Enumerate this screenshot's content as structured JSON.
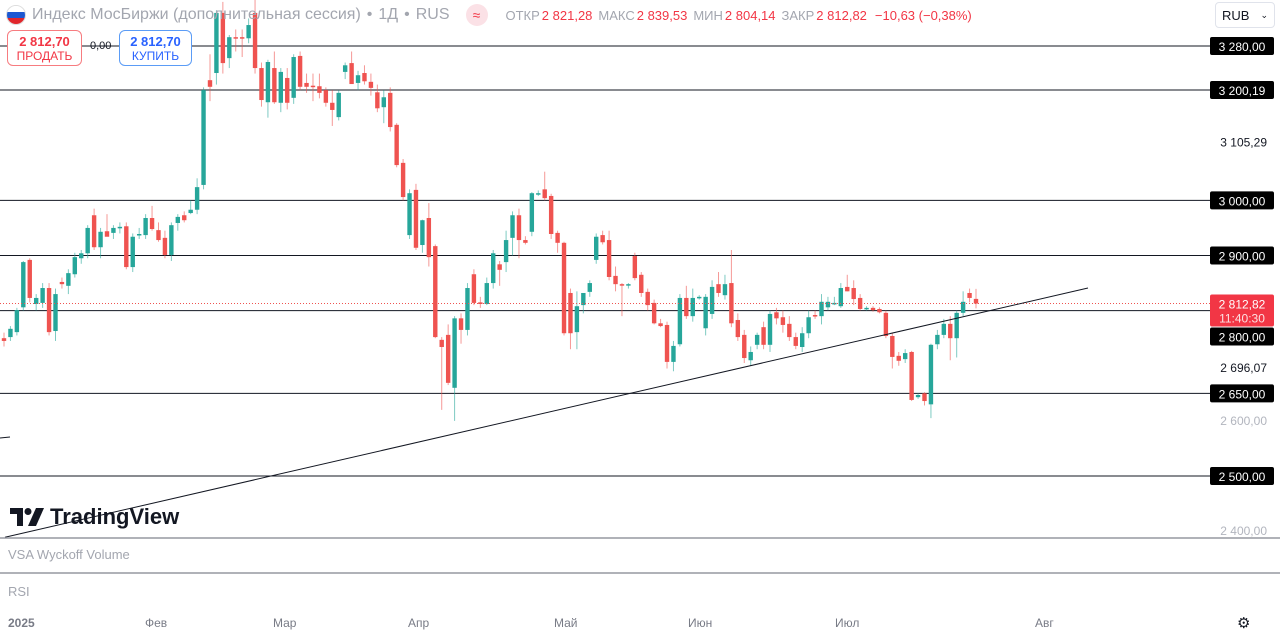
{
  "header": {
    "title": "Индекс МосБиржи (дополнительная сессия)",
    "interval": "1Д",
    "exchange": "RUS",
    "separator": "•",
    "open_label": "ОТКР",
    "open": "2 821,28",
    "high_label": "МАКС",
    "high": "2 839,53",
    "low_label": "МИН",
    "low": "2 804,14",
    "close_label": "ЗАКР",
    "close": "2 812,82",
    "change": "−10,63 (−0,38%)"
  },
  "trade": {
    "sell_price": "2 812,70",
    "sell_label": "ПРОДАТЬ",
    "spread": "0,00",
    "buy_price": "2 812,70",
    "buy_label": "КУПИТЬ"
  },
  "currency": "RUB",
  "logo_text": "TradingView",
  "panes": {
    "volume": "VSA Wyckoff Volume",
    "rsi": "RSI"
  },
  "time_axis": [
    "2025",
    "Фев",
    "Мар",
    "Апр",
    "Май",
    "Июн",
    "Июл",
    "Авг"
  ],
  "colors": {
    "up": "#26a69a",
    "down": "#ef5350",
    "level": "#131722"
  },
  "chart_data": {
    "type": "candlestick",
    "price_range": [
      2380,
      3330
    ],
    "levels": [
      {
        "price": 3280,
        "label": "3 280,00"
      },
      {
        "price": 3200.19,
        "label": "3 200,19"
      },
      {
        "price": 3000,
        "label": "3 000,00"
      },
      {
        "price": 2900,
        "label": "2 900,00"
      },
      {
        "price": 2800,
        "label": "2 800,00"
      },
      {
        "price": 2650,
        "label": "2 650,00"
      },
      {
        "price": 2500,
        "label": "2 500,00"
      }
    ],
    "axis_labels": [
      {
        "price": 3105.29,
        "label": "3 105,29",
        "style": "dark"
      },
      {
        "price": 2696.07,
        "label": "2 696,07",
        "style": "dark"
      },
      {
        "price": 2600,
        "label": "2 600,00",
        "style": "muted"
      },
      {
        "price": 2400,
        "label": "2 400,00",
        "style": "muted"
      }
    ],
    "last_price": {
      "price": 2812.82,
      "label": "2 812,82",
      "countdown": "11:40:30"
    },
    "trendline": {
      "start_price": 2389,
      "end_price": 2841
    },
    "ohlc": [
      [
        2750,
        2760,
        2735,
        2745
      ],
      [
        2752,
        2772,
        2745,
        2767
      ],
      [
        2761,
        2805,
        2755,
        2801
      ],
      [
        2806,
        2890,
        2800,
        2888
      ],
      [
        2892,
        2895,
        2815,
        2823
      ],
      [
        2812,
        2830,
        2800,
        2823
      ],
      [
        2814,
        2850,
        2805,
        2841
      ],
      [
        2841,
        2850,
        2755,
        2761
      ],
      [
        2763,
        2840,
        2745,
        2830
      ],
      [
        2852,
        2860,
        2840,
        2848
      ],
      [
        2845,
        2875,
        2830,
        2868
      ],
      [
        2866,
        2905,
        2860,
        2897
      ],
      [
        2895,
        2910,
        2885,
        2904
      ],
      [
        2904,
        2955,
        2895,
        2950
      ],
      [
        2973,
        2985,
        2910,
        2915
      ],
      [
        2915,
        2950,
        2895,
        2943
      ],
      [
        2944,
        2975,
        2935,
        2934
      ],
      [
        2941,
        2955,
        2930,
        2950
      ],
      [
        2952,
        2960,
        2940,
        2952
      ],
      [
        2953,
        2960,
        2875,
        2879
      ],
      [
        2879,
        2940,
        2870,
        2934
      ],
      [
        2937,
        2950,
        2930,
        2939
      ],
      [
        2937,
        2975,
        2930,
        2968
      ],
      [
        2968,
        2990,
        2945,
        2948
      ],
      [
        2946,
        2960,
        2925,
        2928
      ],
      [
        2932,
        2945,
        2895,
        2901
      ],
      [
        2901,
        2960,
        2890,
        2955
      ],
      [
        2959,
        2975,
        2945,
        2970
      ],
      [
        2973,
        2980,
        2960,
        2964
      ],
      [
        2977,
        3000,
        2975,
        2983
      ],
      [
        2983,
        3040,
        2975,
        3024
      ],
      [
        3028,
        3205,
        3020,
        3200
      ],
      [
        3218,
        3265,
        3180,
        3206
      ],
      [
        3231,
        3345,
        3210,
        3340
      ],
      [
        3340,
        3360,
        3230,
        3249
      ],
      [
        3258,
        3300,
        3240,
        3296
      ],
      [
        3296,
        3310,
        3270,
        3294
      ],
      [
        3296,
        3310,
        3260,
        3294
      ],
      [
        3294,
        3330,
        3285,
        3318
      ],
      [
        3340,
        3365,
        3230,
        3240
      ],
      [
        3240,
        3250,
        3170,
        3182
      ],
      [
        3178,
        3255,
        3150,
        3251
      ],
      [
        3240,
        3270,
        3175,
        3178
      ],
      [
        3177,
        3240,
        3160,
        3233
      ],
      [
        3222,
        3240,
        3165,
        3177
      ],
      [
        3186,
        3265,
        3175,
        3260
      ],
      [
        3262,
        3270,
        3200,
        3206
      ],
      [
        3213,
        3230,
        3195,
        3206
      ],
      [
        3208,
        3230,
        3180,
        3206
      ],
      [
        3207,
        3230,
        3185,
        3195
      ],
      [
        3200,
        3205,
        3170,
        3177
      ],
      [
        3177,
        3200,
        3135,
        3164
      ],
      [
        3151,
        3200,
        3145,
        3195
      ],
      [
        3233,
        3250,
        3220,
        3245
      ],
      [
        3249,
        3270,
        3215,
        3211
      ],
      [
        3213,
        3235,
        3200,
        3227
      ],
      [
        3231,
        3245,
        3210,
        3216
      ],
      [
        3215,
        3230,
        3190,
        3204
      ],
      [
        3196,
        3210,
        3160,
        3167
      ],
      [
        3169,
        3200,
        3140,
        3187
      ],
      [
        3195,
        3205,
        3125,
        3133
      ],
      [
        3137,
        3140,
        3060,
        3064
      ],
      [
        3068,
        3075,
        3000,
        3006
      ],
      [
        2937,
        3020,
        2930,
        3013
      ],
      [
        3019,
        3030,
        2910,
        2914
      ],
      [
        2919,
        2965,
        2905,
        2964
      ],
      [
        2968,
        2995,
        2880,
        2897
      ],
      [
        2917,
        2920,
        2750,
        2752
      ],
      [
        2747,
        2752,
        2620,
        2734
      ],
      [
        2756,
        2775,
        2665,
        2669
      ],
      [
        2660,
        2790,
        2600,
        2786
      ],
      [
        2786,
        2795,
        2740,
        2765
      ],
      [
        2765,
        2850,
        2755,
        2841
      ],
      [
        2866,
        2875,
        2810,
        2814
      ],
      [
        2815,
        2825,
        2805,
        2812
      ],
      [
        2812,
        2860,
        2810,
        2850
      ],
      [
        2850,
        2910,
        2840,
        2904
      ],
      [
        2884,
        2890,
        2845,
        2874
      ],
      [
        2888,
        2945,
        2870,
        2928
      ],
      [
        2932,
        2980,
        2900,
        2973
      ],
      [
        2973,
        2985,
        2895,
        2928
      ],
      [
        2928,
        2935,
        2920,
        2923
      ],
      [
        2943,
        3015,
        2935,
        3013
      ],
      [
        3013,
        3018,
        3008,
        3013
      ],
      [
        3020,
        3052,
        3000,
        3004
      ],
      [
        3008,
        3012,
        2930,
        2939
      ],
      [
        2941,
        2945,
        2905,
        2923
      ],
      [
        2923,
        2925,
        2755,
        2759
      ],
      [
        2832,
        2840,
        2730,
        2759
      ],
      [
        2761,
        2835,
        2730,
        2808
      ],
      [
        2810,
        2830,
        2795,
        2832
      ],
      [
        2834,
        2855,
        2825,
        2850
      ],
      [
        2892,
        2940,
        2885,
        2934
      ],
      [
        2937,
        2945,
        2920,
        2924
      ],
      [
        2928,
        2945,
        2855,
        2861
      ],
      [
        2863,
        2880,
        2835,
        2848
      ],
      [
        2848,
        2850,
        2790,
        2846
      ],
      [
        2846,
        2850,
        2840,
        2848
      ],
      [
        2899,
        2905,
        2855,
        2859
      ],
      [
        2865,
        2870,
        2825,
        2832
      ],
      [
        2834,
        2840,
        2800,
        2810
      ],
      [
        2814,
        2820,
        2775,
        2777
      ],
      [
        2777,
        2785,
        2770,
        2772
      ],
      [
        2774,
        2780,
        2695,
        2707
      ],
      [
        2707,
        2745,
        2690,
        2736
      ],
      [
        2739,
        2830,
        2735,
        2823
      ],
      [
        2823,
        2845,
        2785,
        2790
      ],
      [
        2790,
        2840,
        2780,
        2823
      ],
      [
        2825,
        2828,
        2820,
        2825
      ],
      [
        2768,
        2830,
        2755,
        2825
      ],
      [
        2794,
        2855,
        2785,
        2843
      ],
      [
        2848,
        2870,
        2825,
        2832
      ],
      [
        2828,
        2865,
        2820,
        2848
      ],
      [
        2850,
        2910,
        2770,
        2777
      ],
      [
        2783,
        2795,
        2745,
        2752
      ],
      [
        2756,
        2765,
        2705,
        2714
      ],
      [
        2710,
        2735,
        2700,
        2725
      ],
      [
        2738,
        2760,
        2730,
        2756
      ],
      [
        2770,
        2780,
        2730,
        2738
      ],
      [
        2738,
        2800,
        2725,
        2794
      ],
      [
        2797,
        2805,
        2775,
        2786
      ],
      [
        2788,
        2800,
        2760,
        2774
      ],
      [
        2776,
        2790,
        2745,
        2752
      ],
      [
        2752,
        2760,
        2730,
        2736
      ],
      [
        2734,
        2770,
        2725,
        2759
      ],
      [
        2759,
        2800,
        2750,
        2788
      ],
      [
        2792,
        2800,
        2785,
        2790
      ],
      [
        2790,
        2830,
        2775,
        2816
      ],
      [
        2806,
        2825,
        2800,
        2816
      ],
      [
        2812,
        2825,
        2810,
        2814
      ],
      [
        2808,
        2850,
        2805,
        2841
      ],
      [
        2843,
        2865,
        2835,
        2835
      ],
      [
        2841,
        2855,
        2810,
        2821
      ],
      [
        2823,
        2830,
        2800,
        2803
      ],
      [
        2803,
        2808,
        2800,
        2805
      ],
      [
        2805,
        2808,
        2798,
        2801
      ],
      [
        2803,
        2806,
        2795,
        2797
      ],
      [
        2796,
        2800,
        2750,
        2754
      ],
      [
        2754,
        2760,
        2695,
        2716
      ],
      [
        2718,
        2725,
        2700,
        2709
      ],
      [
        2712,
        2730,
        2705,
        2723
      ],
      [
        2725,
        2727,
        2636,
        2638
      ],
      [
        2643,
        2650,
        2640,
        2647
      ],
      [
        2650,
        2652,
        2628,
        2636
      ],
      [
        2630,
        2740,
        2605,
        2738
      ],
      [
        2739,
        2765,
        2730,
        2756
      ],
      [
        2756,
        2785,
        2750,
        2776
      ],
      [
        2776,
        2790,
        2710,
        2750
      ],
      [
        2750,
        2800,
        2715,
        2796
      ],
      [
        2796,
        2835,
        2790,
        2816
      ],
      [
        2832,
        2840,
        2815,
        2823
      ],
      [
        2821.28,
        2839.53,
        2804.14,
        2812.82
      ]
    ]
  }
}
